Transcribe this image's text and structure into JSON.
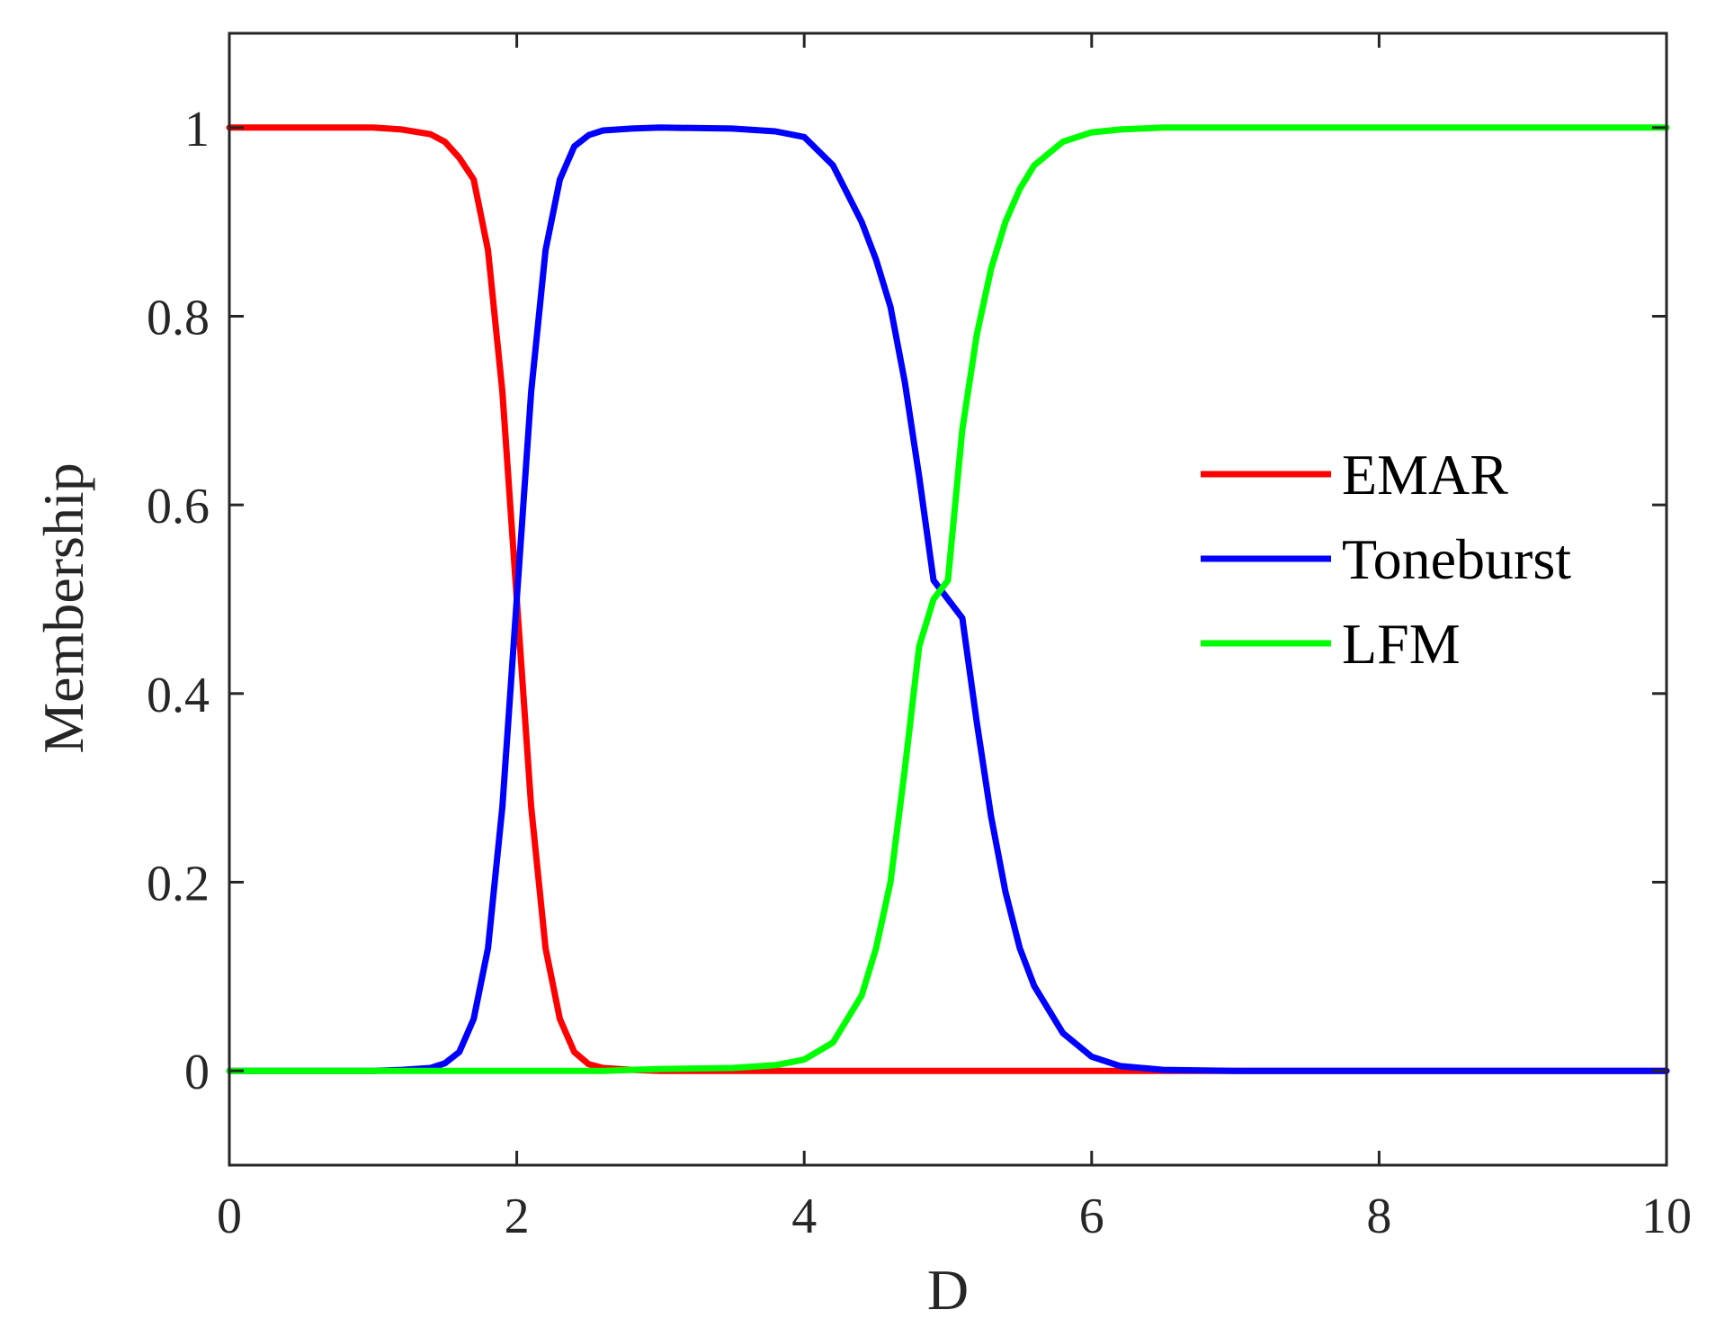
{
  "chart_data": {
    "type": "line",
    "xlabel": "D",
    "ylabel": "Membership",
    "xlim": [
      0,
      10
    ],
    "ylim": [
      -0.1,
      1.1
    ],
    "xticks": [
      0,
      2,
      4,
      6,
      8,
      10
    ],
    "xtick_labels": [
      "0",
      "2",
      "4",
      "6",
      "8",
      "10"
    ],
    "yticks": [
      0,
      0.2,
      0.4,
      0.6,
      0.8,
      1
    ],
    "ytick_labels": [
      "0",
      "0.2",
      "0.4",
      "0.6",
      "0.8",
      "1"
    ],
    "grid": false,
    "legend_position": "right",
    "x": [
      0,
      0.5,
      1,
      1.2,
      1.4,
      1.5,
      1.6,
      1.7,
      1.8,
      1.9,
      2,
      2.1,
      2.2,
      2.3,
      2.4,
      2.5,
      2.6,
      2.8,
      3,
      3.5,
      3.8,
      4,
      4.2,
      4.4,
      4.5,
      4.6,
      4.7,
      4.8,
      4.9,
      5,
      5.1,
      5.2,
      5.3,
      5.4,
      5.5,
      5.6,
      5.8,
      6,
      6.2,
      6.5,
      7,
      8,
      9,
      10
    ],
    "series": [
      {
        "name": "EMAR",
        "color": "#ff0000",
        "values": [
          1,
          1,
          1,
          0.998,
          0.993,
          0.985,
          0.968,
          0.945,
          0.87,
          0.72,
          0.5,
          0.28,
          0.13,
          0.055,
          0.02,
          0.007,
          0.003,
          0.001,
          0,
          0,
          0,
          0,
          0,
          0,
          0,
          0,
          0,
          0,
          0,
          0,
          0,
          0,
          0,
          0,
          0,
          0,
          0,
          0,
          0,
          0,
          0,
          0,
          0,
          0
        ]
      },
      {
        "name": "Toneburst",
        "color": "#0000ff",
        "values": [
          0,
          0,
          0,
          0.001,
          0.003,
          0.008,
          0.02,
          0.055,
          0.13,
          0.28,
          0.5,
          0.72,
          0.87,
          0.945,
          0.98,
          0.992,
          0.997,
          0.999,
          1,
          0.999,
          0.996,
          0.99,
          0.96,
          0.9,
          0.86,
          0.81,
          0.73,
          0.63,
          0.52,
          0.5,
          0.48,
          0.37,
          0.27,
          0.19,
          0.13,
          0.09,
          0.04,
          0.015,
          0.005,
          0.001,
          0,
          0,
          0,
          0
        ]
      },
      {
        "name": "LFM",
        "color": "#00ff00",
        "values": [
          0,
          0,
          0,
          0,
          0,
          0,
          0,
          0,
          0,
          0,
          0,
          0,
          0,
          0,
          0,
          0,
          0,
          0.001,
          0.002,
          0.003,
          0.006,
          0.012,
          0.03,
          0.08,
          0.13,
          0.2,
          0.32,
          0.45,
          0.5,
          0.52,
          0.68,
          0.78,
          0.85,
          0.9,
          0.935,
          0.96,
          0.985,
          0.995,
          0.998,
          1,
          1,
          1,
          1,
          1
        ]
      }
    ]
  }
}
